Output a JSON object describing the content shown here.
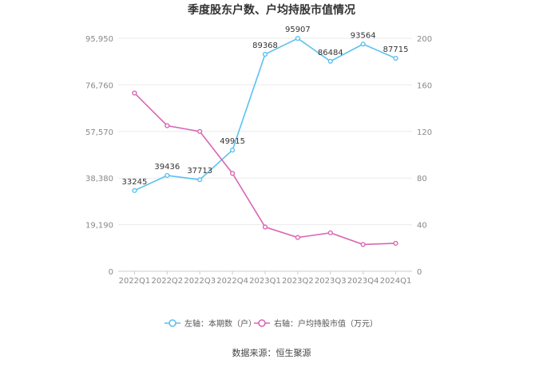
{
  "chart_data": {
    "type": "line",
    "title": "季度股东户数、户均持股市值情况",
    "categories": [
      "2022Q1",
      "2022Q2",
      "2022Q3",
      "2022Q4",
      "2023Q1",
      "2023Q2",
      "2023Q3",
      "2023Q4",
      "2024Q1"
    ],
    "left_axis": {
      "ticks": [
        "0",
        "19,190",
        "38,380",
        "57,570",
        "76,760",
        "95,950"
      ],
      "ylim": [
        0,
        95950
      ]
    },
    "right_axis": {
      "ticks": [
        "0",
        "40",
        "80",
        "120",
        "160",
        "200"
      ],
      "ylim": [
        0,
        200
      ]
    },
    "series": [
      {
        "name": "左轴：本期数（户）",
        "axis": "left",
        "color": "#5bc0f0",
        "values": [
          33245,
          39436,
          37713,
          49915,
          89368,
          95907,
          86484,
          93564,
          87715
        ],
        "labels": [
          "33245",
          "39436",
          "37713",
          "49915",
          "89368",
          "95907",
          "86484",
          "93564",
          "87715"
        ]
      },
      {
        "name": "右轴：户均持股市值（万元）",
        "axis": "right",
        "color": "#d966b5",
        "values": [
          153,
          125,
          120,
          84,
          38,
          29,
          33,
          23,
          24
        ]
      }
    ],
    "grid": true,
    "legend": "bottom"
  },
  "source": "数据来源：恒生聚源"
}
